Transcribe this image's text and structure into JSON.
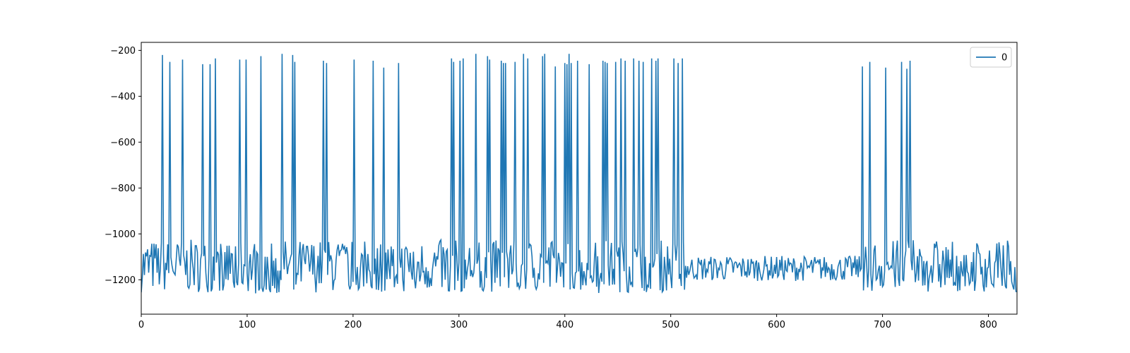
{
  "chart_data": {
    "type": "line",
    "title": "",
    "xlabel": "",
    "ylabel": "",
    "xlim": [
      0,
      827
    ],
    "ylim": [
      -1350,
      -165
    ],
    "x_ticks": [
      0,
      100,
      200,
      300,
      400,
      500,
      600,
      700,
      800
    ],
    "y_ticks": [
      -1200,
      -1000,
      -800,
      -600,
      -400,
      -200
    ],
    "x_tick_labels": [
      "0",
      "100",
      "200",
      "300",
      "400",
      "500",
      "600",
      "700",
      "800"
    ],
    "y_tick_labels": [
      "−1200",
      "−1000",
      "−800",
      "−600",
      "−400",
      "−200"
    ],
    "grid": false,
    "legend_position": "top-right",
    "series": [
      {
        "name": "0",
        "color": "#1f77b4",
        "baseline": -1150,
        "spikes": [
          [
            20,
            -220
          ],
          [
            27,
            -250
          ],
          [
            39,
            -240
          ],
          [
            58,
            -260
          ],
          [
            65,
            -260
          ],
          [
            70,
            -235
          ],
          [
            93,
            -240
          ],
          [
            99,
            -240
          ],
          [
            113,
            -225
          ],
          [
            133,
            -215
          ],
          [
            143,
            -220
          ],
          [
            145,
            -250
          ],
          [
            172,
            -245
          ],
          [
            175,
            -255
          ],
          [
            201,
            -240
          ],
          [
            219,
            -245
          ],
          [
            229,
            -275
          ],
          [
            243,
            -255
          ],
          [
            293,
            -235
          ],
          [
            295,
            -250
          ],
          [
            301,
            -245
          ],
          [
            304,
            -235
          ],
          [
            316,
            -215
          ],
          [
            327,
            -225
          ],
          [
            329,
            -240
          ],
          [
            340,
            -245
          ],
          [
            342,
            -255
          ],
          [
            344,
            -255
          ],
          [
            353,
            -250
          ],
          [
            361,
            -215
          ],
          [
            365,
            -235
          ],
          [
            379,
            -225
          ],
          [
            381,
            -215
          ],
          [
            391,
            -270
          ],
          [
            400,
            -255
          ],
          [
            402,
            -260
          ],
          [
            404,
            -215
          ],
          [
            406,
            -255
          ],
          [
            412,
            -245
          ],
          [
            423,
            -260
          ],
          [
            436,
            -245
          ],
          [
            438,
            -250
          ],
          [
            440,
            -255
          ],
          [
            448,
            -250
          ],
          [
            453,
            -235
          ],
          [
            457,
            -245
          ],
          [
            465,
            -235
          ],
          [
            470,
            -245
          ],
          [
            474,
            -250
          ],
          [
            482,
            -235
          ],
          [
            486,
            -245
          ],
          [
            488,
            -235
          ],
          [
            503,
            -235
          ],
          [
            507,
            -255
          ],
          [
            511,
            -235
          ],
          [
            681,
            -270
          ],
          [
            688,
            -250
          ],
          [
            703,
            -275
          ],
          [
            718,
            -250
          ],
          [
            723,
            -280
          ],
          [
            726,
            -245
          ]
        ]
      }
    ]
  }
}
